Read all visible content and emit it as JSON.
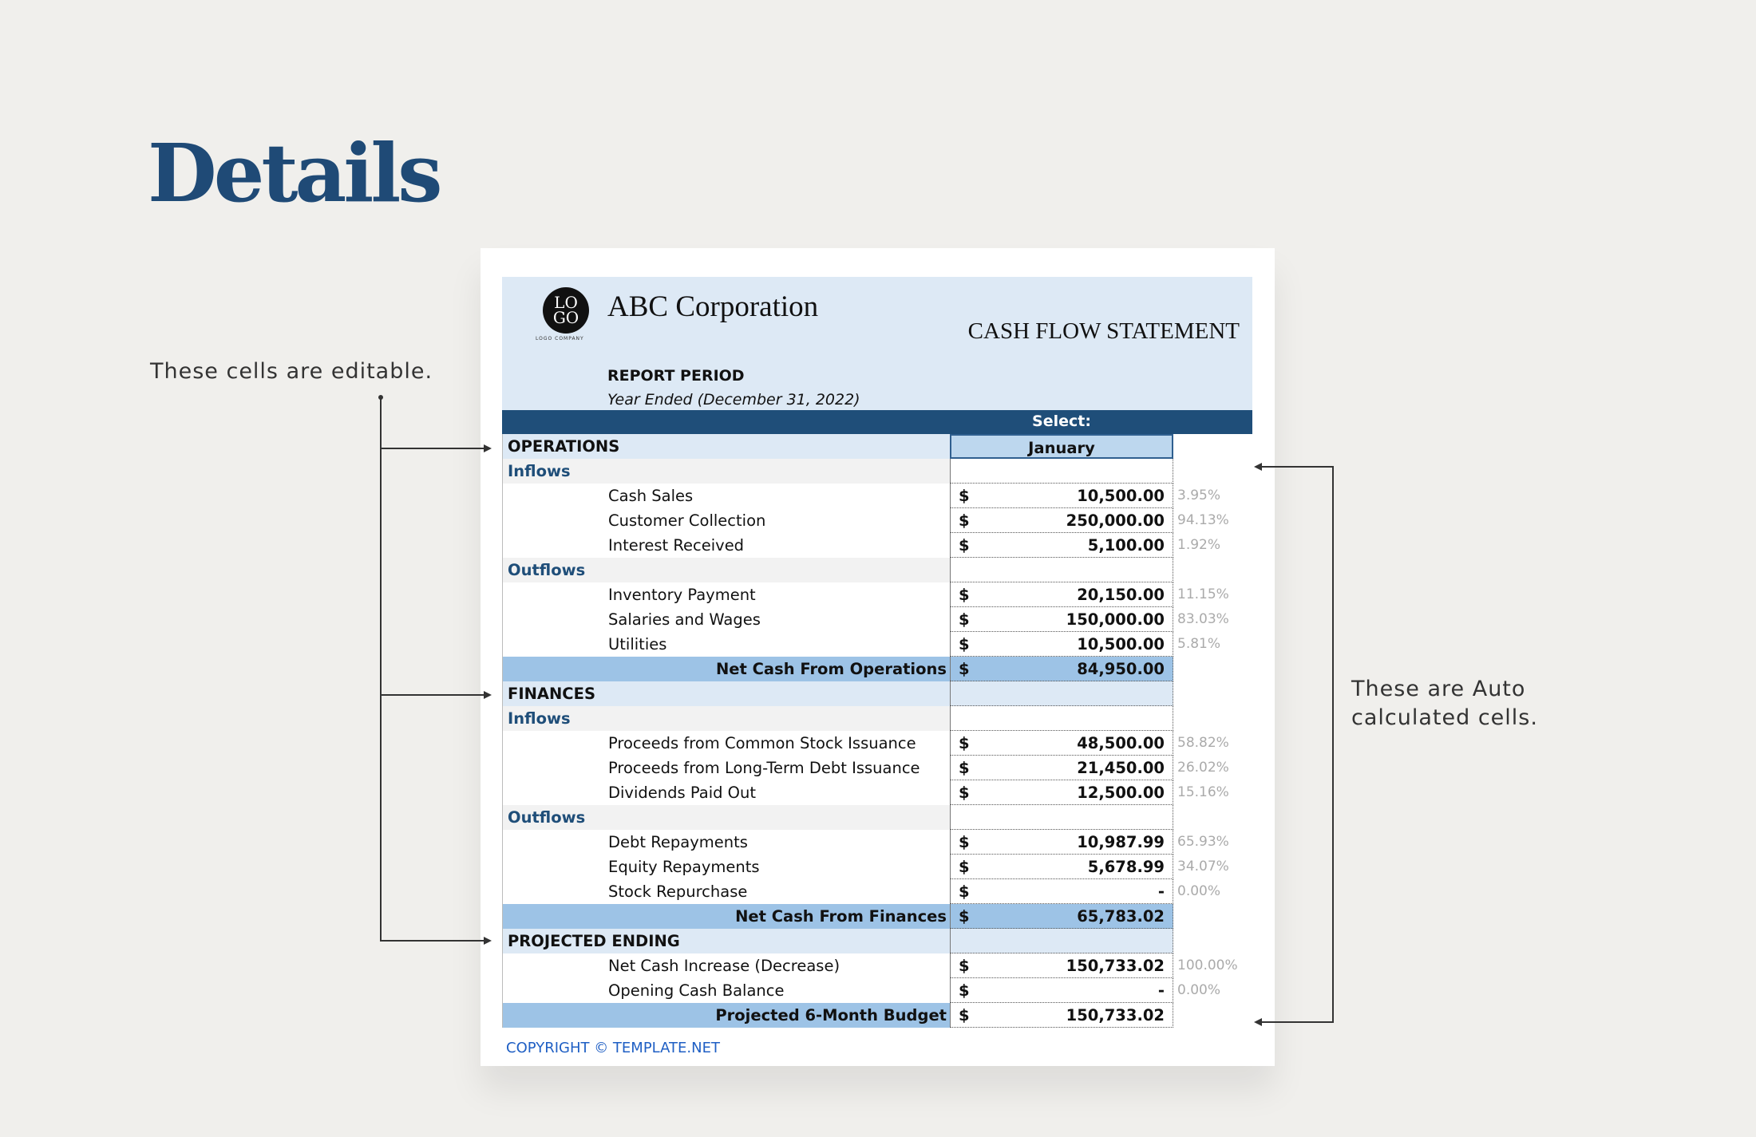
{
  "page_title": "Details",
  "notes": {
    "editable": "These cells are editable.",
    "auto_line1": "These are Auto",
    "auto_line2": "calculated cells."
  },
  "header": {
    "logo_top": "LO",
    "logo_bottom": "GO",
    "logo_sub": "LOGO COMPANY",
    "company": "ABC Corporation",
    "statement_title": "CASH FLOW STATEMENT",
    "report_period_label": "REPORT PERIOD",
    "report_period": "Year Ended (December 31, 2022)",
    "select_label": "Select:",
    "selected_month": "January"
  },
  "rows": [
    {
      "type": "section",
      "label": "OPERATIONS"
    },
    {
      "type": "sub",
      "label": "Inflows"
    },
    {
      "type": "item",
      "label": "Cash Sales",
      "value": "10,500.00",
      "pct": "3.95%"
    },
    {
      "type": "item",
      "label": "Customer Collection",
      "value": "250,000.00",
      "pct": "94.13%"
    },
    {
      "type": "item",
      "label": "Interest Received",
      "value": "5,100.00",
      "pct": "1.92%"
    },
    {
      "type": "sub",
      "label": "Outflows"
    },
    {
      "type": "item",
      "label": "Inventory Payment",
      "value": "20,150.00",
      "pct": "11.15%"
    },
    {
      "type": "item",
      "label": "Salaries and Wages",
      "value": "150,000.00",
      "pct": "83.03%"
    },
    {
      "type": "item",
      "label": "Utilities",
      "value": "10,500.00",
      "pct": "5.81%"
    },
    {
      "type": "total",
      "label": "Net Cash From Operations",
      "value": "84,950.00"
    },
    {
      "type": "section",
      "label": "FINANCES"
    },
    {
      "type": "sub",
      "label": "Inflows"
    },
    {
      "type": "item",
      "label": "Proceeds from Common Stock Issuance",
      "value": "48,500.00",
      "pct": "58.82%"
    },
    {
      "type": "item",
      "label": "Proceeds from Long-Term Debt Issuance",
      "value": "21,450.00",
      "pct": "26.02%"
    },
    {
      "type": "item",
      "label": "Dividends Paid Out",
      "value": "12,500.00",
      "pct": "15.16%"
    },
    {
      "type": "sub",
      "label": "Outflows"
    },
    {
      "type": "item",
      "label": "Debt Repayments",
      "value": "10,987.99",
      "pct": "65.93%"
    },
    {
      "type": "item",
      "label": "Equity Repayments",
      "value": "5,678.99",
      "pct": "34.07%"
    },
    {
      "type": "item",
      "label": "Stock Repurchase",
      "value": "-",
      "pct": "0.00%"
    },
    {
      "type": "total",
      "label": "Net Cash From Finances",
      "value": "65,783.02"
    },
    {
      "type": "section",
      "label": "PROJECTED ENDING"
    },
    {
      "type": "item",
      "label": "Net Cash Increase (Decrease)",
      "value": "150,733.02",
      "pct": "100.00%"
    },
    {
      "type": "item",
      "label": "Opening Cash Balance",
      "value": "-",
      "pct": "0.00%"
    },
    {
      "type": "total",
      "label": "Projected 6-Month Budget",
      "value": "150,733.02",
      "last": true
    }
  ],
  "currency_symbol": "$",
  "copyright": "COPYRIGHT © TEMPLATE.NET",
  "colors": {
    "title": "#1f4a76",
    "band": "#1f4e79",
    "section_bg": "#dde9f5",
    "total_bg": "#9dc3e6",
    "dropdown_bg": "#bdd7ee"
  }
}
